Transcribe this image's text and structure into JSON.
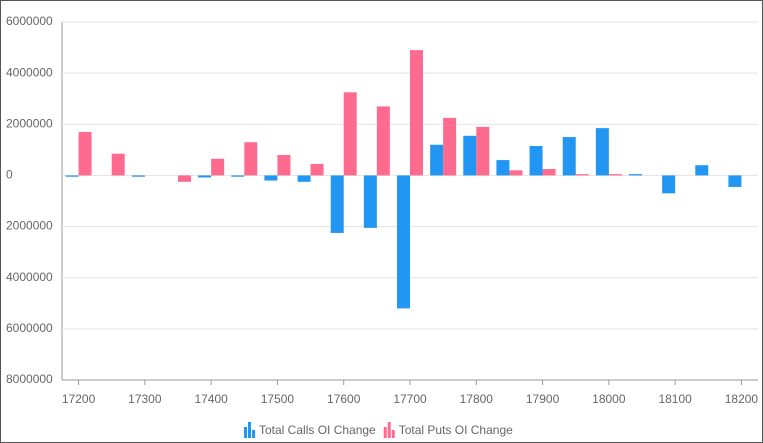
{
  "chart_data": {
    "type": "bar",
    "categories": [
      17200,
      null,
      17300,
      null,
      17400,
      null,
      17500,
      null,
      17600,
      null,
      17700,
      null,
      17800,
      null,
      17900,
      null,
      18000,
      null,
      18100,
      null,
      18200
    ],
    "series": [
      {
        "name": "Total Calls OI Change",
        "color": "#2196f3",
        "values": [
          -50000,
          0,
          -50000,
          0,
          -80000,
          -50000,
          -200000,
          -250000,
          -2250000,
          -2050000,
          -5200000,
          1200000,
          1550000,
          600000,
          1150000,
          1500000,
          1850000,
          50000,
          -700000,
          400000,
          -450000
        ]
      },
      {
        "name": "Total Puts OI Change",
        "color": "#ff6b8f",
        "values": [
          1700000,
          850000,
          0,
          -250000,
          650000,
          1300000,
          800000,
          450000,
          3250000,
          2700000,
          4900000,
          2250000,
          1900000,
          200000,
          250000,
          50000,
          50000,
          0,
          0,
          0,
          0
        ]
      }
    ],
    "ylim": [
      -8000000,
      6000000
    ],
    "yticks": [
      {
        "value": -8000000,
        "label": "8000000"
      },
      {
        "value": -6000000,
        "label": "6000000"
      },
      {
        "value": -4000000,
        "label": "4000000"
      },
      {
        "value": -2000000,
        "label": "2000000"
      },
      0,
      2000000,
      4000000,
      6000000
    ],
    "grid": true
  }
}
